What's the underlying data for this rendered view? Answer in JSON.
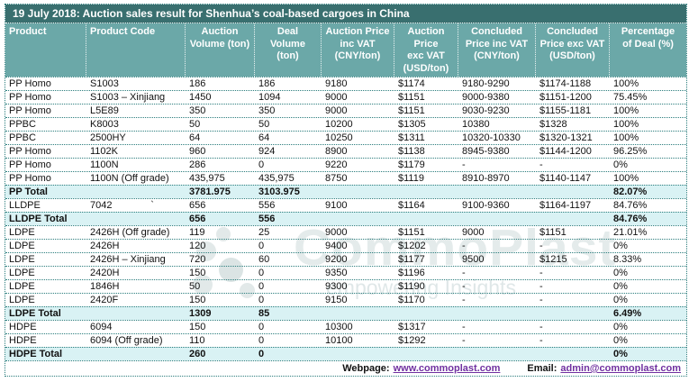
{
  "title": "19 July 2018: Auction sales result for Shenhua’s coal-based cargoes in China",
  "colors": {
    "title_bar_bg": "#396f6f",
    "header_bg": "#6ba8a8",
    "total_row_bg": "#d9f2f4",
    "grid_dotted_line": "#2b7d7d",
    "link": "#7030a0",
    "watermark": "#bccccE"
  },
  "table": {
    "columns": [
      "Product",
      "Product Code",
      "Auction\nVolume (ton)",
      "Deal\nVolume\n(ton)",
      "Auction Price\ninc VAT\n(CNY/ton)",
      "Auction\nPrice\nexc VAT\n(USD/ton)",
      "Concluded\nPrice inc VAT\n(CNY/ton)",
      "Concluded\nPrice exc VAT\n(USD/ton)",
      "Percentage\nof Deal (%)"
    ],
    "rows": [
      {
        "type": "data",
        "cells": [
          "PP Homo",
          "S1003",
          "186",
          "186",
          "9180",
          "$1174",
          "9180-9290",
          "$1174-1188",
          "100%"
        ]
      },
      {
        "type": "data",
        "cells": [
          "PP Homo",
          "S1003 – Xinjiang",
          "1450",
          "1094",
          "9000",
          "$1151",
          "9000-9380",
          "$1151-1200",
          "75.45%"
        ]
      },
      {
        "type": "data",
        "cells": [
          "PP Homo",
          "L5E89",
          "350",
          "350",
          "9000",
          "$1151",
          "9030-9230",
          "$1155-1181",
          "100%"
        ]
      },
      {
        "type": "data",
        "cells": [
          "PPBC",
          "K8003",
          "50",
          "50",
          "10200",
          "$1305",
          "10380",
          "$1328",
          "100%"
        ]
      },
      {
        "type": "data",
        "cells": [
          "PPBC",
          "2500HY",
          "64",
          "64",
          "10250",
          "$1311",
          "10320-10330",
          "$1320-1321",
          "100%"
        ]
      },
      {
        "type": "data",
        "cells": [
          "PP Homo",
          "1102K",
          "960",
          "924",
          "8900",
          "$1138",
          "8945-9380",
          "$1144-1200",
          "96.25%"
        ]
      },
      {
        "type": "data",
        "cells": [
          "PP Homo",
          "1100N",
          "286",
          "0",
          "9220",
          "$1179",
          "-",
          "-",
          "0%"
        ]
      },
      {
        "type": "data",
        "cells": [
          "PP Homo",
          "1100N (Off grade)",
          "435,975",
          "435,975",
          "8750",
          "$1119",
          "8910-8970",
          "$1140-1147",
          "100%"
        ]
      },
      {
        "type": "total",
        "cells": [
          "PP Total",
          "",
          "3781.975",
          "3103.975",
          "",
          "",
          "",
          "",
          "82.07%"
        ]
      },
      {
        "type": "data",
        "cells": [
          "LLDPE",
          "7042              `",
          "656",
          "556",
          "9100",
          "$1164",
          "9100-9360",
          "$1164-1197",
          "84.76%"
        ]
      },
      {
        "type": "total",
        "cells": [
          "LLDPE Total",
          "",
          "656",
          "556",
          "",
          "",
          "",
          "",
          "84.76%"
        ]
      },
      {
        "type": "data",
        "cells": [
          "LDPE",
          "2426H (Off grade)",
          "119",
          "25",
          "9000",
          "$1151",
          "9000",
          "$1151",
          "21.01%"
        ]
      },
      {
        "type": "data",
        "cells": [
          "LDPE",
          "2426H",
          "120",
          "0",
          "9400",
          "$1202",
          "-",
          "-",
          "0%"
        ]
      },
      {
        "type": "data",
        "cells": [
          "LDPE",
          "2426H – Xinjiang",
          "720",
          "60",
          "9200",
          "$1177",
          "9500",
          "$1215",
          "8.33%"
        ]
      },
      {
        "type": "data",
        "cells": [
          "LDPE",
          "2420H",
          "150",
          "0",
          "9350",
          "$1196",
          "-",
          "-",
          "0%"
        ]
      },
      {
        "type": "data",
        "cells": [
          "LDPE",
          "1846H",
          "50",
          "0",
          "9300",
          "$1190",
          "-",
          "-",
          "0%"
        ]
      },
      {
        "type": "data",
        "cells": [
          "LDPE",
          "2420F",
          "150",
          "0",
          "9150",
          "$1170",
          "-",
          "-",
          "0%"
        ]
      },
      {
        "type": "total",
        "cells": [
          "LDPE Total",
          "",
          "1309",
          "85",
          "",
          "",
          "",
          "",
          "6.49%"
        ]
      },
      {
        "type": "data",
        "cells": [
          "HDPE",
          "6094",
          "150",
          "0",
          "10300",
          "$1317",
          "-",
          "-",
          "0%"
        ]
      },
      {
        "type": "data",
        "cells": [
          "HDPE",
          "6094 (Off grade)",
          "110",
          "0",
          "10100",
          "$1292",
          "-",
          "-",
          "0%"
        ]
      },
      {
        "type": "total",
        "cells": [
          "HDPE Total",
          "",
          "260",
          "0",
          "",
          "",
          "",
          "",
          "0%"
        ]
      }
    ]
  },
  "footer": {
    "webpage_label": "Webpage:",
    "webpage_url": "www.commoplast.com",
    "email_label": "Email:",
    "email_address": "admin@commoplast.com"
  },
  "watermark": {
    "brand": "CommoPlast",
    "tagline": "empowering Insights"
  }
}
